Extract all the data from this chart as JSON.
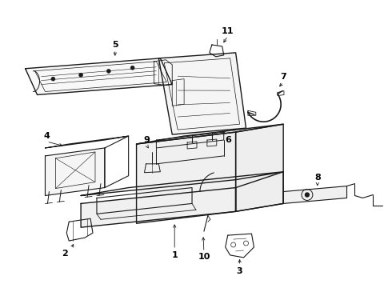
{
  "background_color": "#ffffff",
  "line_color": "#1a1a1a",
  "figure_width": 4.9,
  "figure_height": 3.6,
  "dpi": 100
}
